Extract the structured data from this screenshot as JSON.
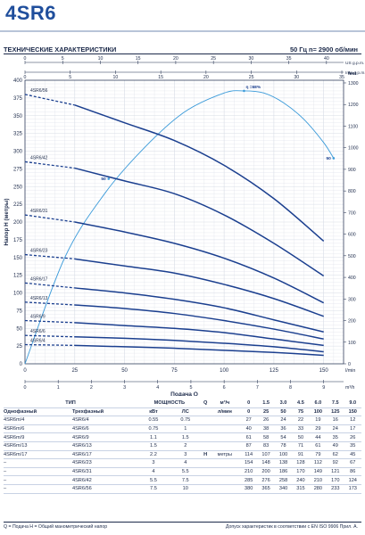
{
  "header": {
    "title": "4SR6",
    "specs_label": "ТЕХНИЧЕСКИЕ ХАРАКТЕРИСТИКИ",
    "rate_label": "50 Гц    n= 2900  об/мин"
  },
  "colors": {
    "brand": "#1f4e9c",
    "curve": "#1b3f8f",
    "efficiency": "#3a9ad9",
    "grid": "#d7dce6",
    "text": "#1c2a4a"
  },
  "chart_data": {
    "type": "line",
    "title": "",
    "xlabel": "Подача Q",
    "ylabel": "Напор H (метры)",
    "y_right_label": "feet",
    "x_unit_bottom": "l/min",
    "x_unit_second": "m³/h",
    "x_unit_top": "US g.p.m.",
    "x_unit_top2": "Imp g.p.m.",
    "xlim": [
      0,
      160
    ],
    "ylim": [
      0,
      400
    ],
    "x_ticks": [
      0,
      25,
      50,
      75,
      100,
      125,
      150
    ],
    "y_ticks": [
      0,
      25,
      50,
      75,
      100,
      125,
      150,
      175,
      200,
      225,
      250,
      275,
      300,
      325,
      350,
      375,
      400
    ],
    "m3h_ticks": [
      0,
      1,
      2,
      3,
      4,
      5,
      6,
      7,
      8,
      9,
      10
    ],
    "usgpm_ticks": [
      0,
      5,
      10,
      15,
      20,
      25,
      30,
      35,
      40
    ],
    "impgpm_ticks": [
      0,
      5,
      10,
      15,
      20,
      25,
      30,
      35
    ],
    "feet_ticks": [
      0,
      100,
      200,
      300,
      400,
      500,
      600,
      700,
      800,
      900,
      1000,
      1100,
      1200,
      1300
    ],
    "grid": true,
    "series": [
      {
        "name": "4SR6/56",
        "x": [
          0,
          25,
          50,
          75,
          100,
          125,
          150
        ],
        "y": [
          380,
          365,
          340,
          315,
          280,
          233,
          173
        ]
      },
      {
        "name": "4SR6/42",
        "x": [
          0,
          25,
          50,
          75,
          100,
          125,
          150
        ],
        "y": [
          285,
          276,
          258,
          240,
          210,
          170,
          124
        ]
      },
      {
        "name": "4SR6/31",
        "x": [
          0,
          25,
          50,
          75,
          100,
          125,
          150
        ],
        "y": [
          210,
          200,
          186,
          170,
          149,
          121,
          86
        ]
      },
      {
        "name": "4SR6/23",
        "x": [
          0,
          25,
          50,
          75,
          100,
          125,
          150
        ],
        "y": [
          154,
          148,
          138,
          128,
          112,
          92,
          67
        ]
      },
      {
        "name": "4SR6/17",
        "x": [
          0,
          25,
          50,
          75,
          100,
          125,
          150
        ],
        "y": [
          114,
          107,
          100,
          91,
          79,
          62,
          45
        ]
      },
      {
        "name": "4SR6/13",
        "x": [
          0,
          25,
          50,
          75,
          100,
          125,
          150
        ],
        "y": [
          87,
          83,
          78,
          71,
          61,
          49,
          35
        ]
      },
      {
        "name": "4SR6/9",
        "x": [
          0,
          25,
          50,
          75,
          100,
          125,
          150
        ],
        "y": [
          61,
          58,
          54,
          50,
          44,
          35,
          26
        ]
      },
      {
        "name": "4SR6/6",
        "x": [
          0,
          25,
          50,
          75,
          100,
          125,
          150
        ],
        "y": [
          40,
          38,
          36,
          33,
          29,
          24,
          17
        ]
      },
      {
        "name": "4SR6/4",
        "x": [
          0,
          25,
          50,
          75,
          100,
          125,
          150
        ],
        "y": [
          27,
          26,
          24,
          22,
          19,
          16,
          12
        ]
      }
    ],
    "efficiency_curve": {
      "label": "η =68%",
      "x": [
        0,
        20,
        40,
        60,
        80,
        100,
        110,
        120,
        130,
        140,
        150,
        155
      ],
      "y": [
        0,
        150,
        240,
        305,
        355,
        382,
        385,
        382,
        368,
        345,
        312,
        290
      ]
    },
    "efficiency_markers": [
      {
        "label": "50",
        "x": 42,
        "y": 261
      },
      {
        "label": "50",
        "x": 155,
        "y": 290
      }
    ]
  },
  "table": {
    "type_header": "ТИП",
    "power_header": "МОЩНОСТЬ",
    "single_phase": "Однофазный",
    "three_phase": "Трехфазный",
    "kw": "кВт",
    "hp": "ЛС",
    "q_label": "Q",
    "m3h_label": "м³/ч",
    "lmin_label": "л/мин",
    "h_label": "H",
    "meters_label": "метры",
    "q_m3h": [
      "0",
      "1.5",
      "3.0",
      "4.5",
      "6.0",
      "7.5",
      "9.0"
    ],
    "q_lmin": [
      "0",
      "25",
      "50",
      "75",
      "100",
      "125",
      "150"
    ],
    "rows": [
      {
        "single": "4SR6m/4",
        "three": "4SR6/4",
        "kw": "0.55",
        "hp": "0.75",
        "h": [
          "27",
          "26",
          "24",
          "22",
          "19",
          "16",
          "12"
        ]
      },
      {
        "single": "4SR6m/6",
        "three": "4SR6/6",
        "kw": "0.75",
        "hp": "1",
        "h": [
          "40",
          "38",
          "36",
          "33",
          "29",
          "24",
          "17"
        ]
      },
      {
        "single": "4SR6m/9",
        "three": "4SR6/9",
        "kw": "1.1",
        "hp": "1.5",
        "h": [
          "61",
          "58",
          "54",
          "50",
          "44",
          "35",
          "26"
        ]
      },
      {
        "single": "4SR6m/13",
        "three": "4SR6/13",
        "kw": "1.5",
        "hp": "2",
        "h": [
          "87",
          "83",
          "78",
          "71",
          "61",
          "49",
          "35"
        ]
      },
      {
        "single": "4SR6m/17",
        "three": "4SR6/17",
        "kw": "2.2",
        "hp": "3",
        "h": [
          "114",
          "107",
          "100",
          "91",
          "79",
          "62",
          "45"
        ]
      },
      {
        "single": "–",
        "three": "4SR6/23",
        "kw": "3",
        "hp": "4",
        "h": [
          "154",
          "148",
          "138",
          "128",
          "112",
          "92",
          "67"
        ]
      },
      {
        "single": "–",
        "three": "4SR6/31",
        "kw": "4",
        "hp": "5.5",
        "h": [
          "210",
          "200",
          "186",
          "170",
          "149",
          "121",
          "86"
        ]
      },
      {
        "single": "–",
        "three": "4SR6/42",
        "kw": "5.5",
        "hp": "7.5",
        "h": [
          "285",
          "276",
          "258",
          "240",
          "210",
          "170",
          "124"
        ]
      },
      {
        "single": "–",
        "three": "4SR6/56",
        "kw": "7.5",
        "hp": "10",
        "h": [
          "380",
          "365",
          "340",
          "315",
          "280",
          "233",
          "173"
        ]
      }
    ]
  },
  "footer": {
    "legend": "Q = Подача   H = Общий манометрический напор",
    "tolerance": "Допуск характеристик в соответствии с EN ISO 9906 Прил. A."
  }
}
